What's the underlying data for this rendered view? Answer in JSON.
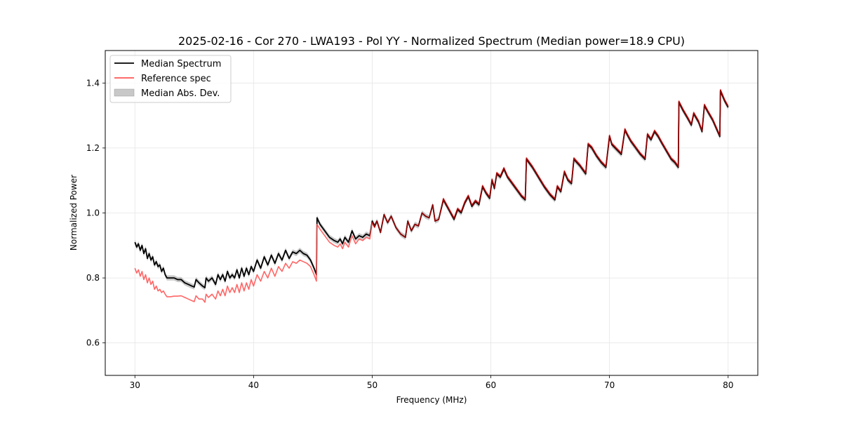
{
  "chart_data": {
    "type": "line",
    "title": "2025-02-16 - Cor 270 - LWA193 - Pol YY - Normalized Spectrum (Median power=18.9 CPU)",
    "xlabel": "Frequency (MHz)",
    "ylabel": "Normalized Power",
    "xlim": [
      27.5,
      82.5
    ],
    "ylim": [
      0.5,
      1.5
    ],
    "xticks": [
      30,
      40,
      50,
      60,
      70,
      80
    ],
    "xtick_labels": [
      "30",
      "40",
      "50",
      "60",
      "70",
      "80"
    ],
    "yticks": [
      0.6,
      0.8,
      1.0,
      1.2,
      1.4
    ],
    "ytick_labels": [
      "0.6",
      "0.8",
      "1.0",
      "1.2",
      "1.4"
    ],
    "grid": true,
    "legend_position": "top-left",
    "legend": [
      {
        "label": "Median Spectrum",
        "type": "line",
        "color": "#000000"
      },
      {
        "label": "Reference spec",
        "type": "line",
        "color": "#ff5555"
      },
      {
        "label": "Median Abs. Dev.",
        "type": "band",
        "color": "#b0b0b0"
      }
    ],
    "mad_halfwidth": 0.008,
    "series": [
      {
        "name": "Median Spectrum",
        "color": "#000000",
        "x": [
          30.0,
          30.15,
          30.3,
          30.45,
          30.6,
          30.75,
          30.9,
          31.05,
          31.2,
          31.35,
          31.5,
          31.65,
          31.8,
          31.95,
          32.1,
          32.25,
          32.4,
          32.55,
          32.7,
          33.0,
          33.3,
          33.6,
          33.9,
          34.2,
          34.5,
          34.8,
          35.0,
          35.15,
          35.4,
          35.7,
          35.9,
          36.0,
          36.2,
          36.5,
          36.8,
          37.0,
          37.2,
          37.4,
          37.6,
          37.8,
          38.0,
          38.2,
          38.4,
          38.6,
          38.8,
          39.0,
          39.2,
          39.4,
          39.6,
          39.8,
          40.0,
          40.3,
          40.6,
          40.9,
          41.2,
          41.5,
          41.8,
          42.1,
          42.4,
          42.7,
          43.0,
          43.3,
          43.6,
          43.9,
          44.2,
          44.5,
          44.8,
          45.1,
          45.3,
          45.35,
          45.6,
          46.0,
          46.4,
          46.8,
          47.1,
          47.3,
          47.5,
          47.7,
          48.0,
          48.3,
          48.6,
          48.9,
          49.2,
          49.5,
          49.8,
          50.0,
          50.2,
          50.4,
          50.7,
          51.0,
          51.3,
          51.6,
          52.0,
          52.4,
          52.8,
          53.0,
          53.3,
          53.6,
          53.9,
          54.2,
          54.5,
          54.8,
          55.1,
          55.3,
          55.6,
          56.0,
          56.3,
          56.6,
          56.9,
          57.2,
          57.5,
          57.8,
          58.1,
          58.4,
          58.7,
          59.0,
          59.3,
          59.6,
          59.9,
          60.1,
          60.3,
          60.5,
          60.8,
          61.1,
          61.4,
          61.7,
          62.0,
          62.3,
          62.6,
          62.9,
          63.0,
          63.5,
          64.0,
          64.5,
          65.0,
          65.4,
          65.6,
          65.9,
          66.2,
          66.5,
          66.8,
          67.0,
          67.5,
          68.0,
          68.2,
          68.5,
          68.9,
          69.3,
          69.7,
          70.0,
          70.2,
          70.6,
          71.0,
          71.3,
          71.5,
          71.8,
          72.2,
          72.6,
          73.0,
          73.2,
          73.5,
          73.8,
          74.1,
          74.4,
          74.8,
          75.2,
          75.5,
          75.8,
          75.85,
          76.2,
          76.6,
          76.9,
          77.1,
          77.5,
          77.8,
          78.0,
          78.3,
          78.7,
          79.0,
          79.3,
          79.35,
          79.7,
          80.0
        ],
        "y": [
          0.91,
          0.895,
          0.905,
          0.885,
          0.9,
          0.875,
          0.89,
          0.86,
          0.875,
          0.855,
          0.865,
          0.84,
          0.85,
          0.835,
          0.84,
          0.82,
          0.83,
          0.81,
          0.8,
          0.8,
          0.8,
          0.795,
          0.795,
          0.785,
          0.78,
          0.775,
          0.772,
          0.795,
          0.785,
          0.775,
          0.77,
          0.8,
          0.79,
          0.8,
          0.78,
          0.81,
          0.795,
          0.81,
          0.79,
          0.82,
          0.8,
          0.81,
          0.8,
          0.825,
          0.8,
          0.83,
          0.805,
          0.83,
          0.81,
          0.835,
          0.82,
          0.855,
          0.83,
          0.865,
          0.84,
          0.87,
          0.845,
          0.875,
          0.855,
          0.885,
          0.86,
          0.88,
          0.875,
          0.885,
          0.875,
          0.87,
          0.855,
          0.83,
          0.81,
          0.985,
          0.965,
          0.945,
          0.925,
          0.915,
          0.91,
          0.92,
          0.905,
          0.925,
          0.91,
          0.945,
          0.92,
          0.93,
          0.925,
          0.935,
          0.93,
          0.975,
          0.96,
          0.975,
          0.94,
          0.995,
          0.97,
          0.99,
          0.955,
          0.935,
          0.925,
          0.975,
          0.945,
          0.965,
          0.96,
          1.0,
          0.99,
          0.985,
          1.025,
          0.975,
          0.98,
          1.04,
          1.02,
          1.0,
          0.98,
          1.01,
          1.0,
          1.03,
          1.05,
          1.02,
          1.035,
          1.025,
          1.08,
          1.06,
          1.045,
          1.1,
          1.075,
          1.12,
          1.11,
          1.135,
          1.11,
          1.095,
          1.08,
          1.065,
          1.05,
          1.04,
          1.165,
          1.14,
          1.11,
          1.08,
          1.055,
          1.04,
          1.08,
          1.065,
          1.125,
          1.1,
          1.09,
          1.165,
          1.145,
          1.12,
          1.21,
          1.2,
          1.175,
          1.155,
          1.14,
          1.235,
          1.21,
          1.195,
          1.18,
          1.255,
          1.24,
          1.22,
          1.2,
          1.18,
          1.165,
          1.24,
          1.225,
          1.25,
          1.235,
          1.215,
          1.19,
          1.165,
          1.155,
          1.14,
          1.34,
          1.315,
          1.29,
          1.27,
          1.305,
          1.28,
          1.25,
          1.33,
          1.31,
          1.285,
          1.26,
          1.235,
          1.375,
          1.345,
          1.325
        ]
      },
      {
        "name": "Reference spec",
        "color": "#ff5555",
        "x": [
          30.0,
          30.15,
          30.3,
          30.45,
          30.6,
          30.75,
          30.9,
          31.05,
          31.2,
          31.35,
          31.5,
          31.65,
          31.8,
          31.95,
          32.1,
          32.25,
          32.4,
          32.55,
          32.7,
          33.0,
          33.3,
          33.6,
          33.9,
          34.2,
          34.5,
          34.8,
          35.0,
          35.15,
          35.4,
          35.7,
          35.9,
          36.0,
          36.2,
          36.5,
          36.8,
          37.0,
          37.2,
          37.4,
          37.6,
          37.8,
          38.0,
          38.2,
          38.4,
          38.6,
          38.8,
          39.0,
          39.2,
          39.4,
          39.6,
          39.8,
          40.0,
          40.3,
          40.6,
          40.9,
          41.2,
          41.5,
          41.8,
          42.1,
          42.4,
          42.7,
          43.0,
          43.3,
          43.6,
          43.9,
          44.2,
          44.5,
          44.8,
          45.1,
          45.3,
          45.35,
          45.6,
          46.0,
          46.4,
          46.8,
          47.1,
          47.3,
          47.5,
          47.7,
          48.0,
          48.3,
          48.6,
          48.9,
          49.2,
          49.5,
          49.8,
          50.0,
          50.2,
          50.4,
          50.7,
          51.0,
          51.3,
          51.6,
          52.0,
          52.4,
          52.8,
          53.0,
          53.3,
          53.6,
          53.9,
          54.2,
          54.5,
          54.8,
          55.1,
          55.3,
          55.6,
          56.0,
          56.3,
          56.6,
          56.9,
          57.2,
          57.5,
          57.8,
          58.1,
          58.4,
          58.7,
          59.0,
          59.3,
          59.6,
          59.9,
          60.1,
          60.3,
          60.5,
          60.8,
          61.1,
          61.4,
          61.7,
          62.0,
          62.3,
          62.6,
          62.9,
          63.0,
          63.5,
          64.0,
          64.5,
          65.0,
          65.4,
          65.6,
          65.9,
          66.2,
          66.5,
          66.8,
          67.0,
          67.5,
          68.0,
          68.2,
          68.5,
          68.9,
          69.3,
          69.7,
          70.0,
          70.2,
          70.6,
          71.0,
          71.3,
          71.5,
          71.8,
          72.2,
          72.6,
          73.0,
          73.2,
          73.5,
          73.8,
          74.1,
          74.4,
          74.8,
          75.2,
          75.5,
          75.8,
          75.85,
          76.2,
          76.6,
          76.9,
          77.1,
          77.5,
          77.8,
          78.0,
          78.3,
          78.7,
          79.0,
          79.3,
          79.35,
          79.7,
          80.0
        ],
        "y": [
          0.83,
          0.815,
          0.825,
          0.805,
          0.82,
          0.795,
          0.81,
          0.785,
          0.8,
          0.78,
          0.79,
          0.765,
          0.775,
          0.76,
          0.765,
          0.755,
          0.76,
          0.75,
          0.742,
          0.742,
          0.744,
          0.744,
          0.745,
          0.74,
          0.735,
          0.73,
          0.727,
          0.745,
          0.735,
          0.735,
          0.725,
          0.75,
          0.74,
          0.75,
          0.735,
          0.76,
          0.745,
          0.765,
          0.745,
          0.775,
          0.755,
          0.77,
          0.755,
          0.78,
          0.755,
          0.785,
          0.76,
          0.785,
          0.765,
          0.795,
          0.775,
          0.81,
          0.79,
          0.82,
          0.8,
          0.83,
          0.805,
          0.835,
          0.82,
          0.845,
          0.83,
          0.85,
          0.845,
          0.855,
          0.85,
          0.845,
          0.835,
          0.81,
          0.79,
          0.965,
          0.95,
          0.93,
          0.91,
          0.9,
          0.895,
          0.905,
          0.89,
          0.91,
          0.895,
          0.93,
          0.905,
          0.92,
          0.915,
          0.925,
          0.92,
          0.97,
          0.955,
          0.975,
          0.94,
          0.995,
          0.97,
          0.99,
          0.955,
          0.935,
          0.925,
          0.975,
          0.945,
          0.965,
          0.96,
          1.0,
          0.99,
          0.985,
          1.025,
          0.975,
          0.98,
          1.045,
          1.025,
          1.005,
          0.985,
          1.015,
          1.005,
          1.035,
          1.055,
          1.025,
          1.04,
          1.03,
          1.085,
          1.065,
          1.05,
          1.105,
          1.08,
          1.125,
          1.115,
          1.14,
          1.115,
          1.1,
          1.085,
          1.07,
          1.055,
          1.045,
          1.17,
          1.145,
          1.115,
          1.085,
          1.06,
          1.045,
          1.085,
          1.07,
          1.13,
          1.105,
          1.095,
          1.17,
          1.15,
          1.125,
          1.215,
          1.205,
          1.18,
          1.16,
          1.145,
          1.24,
          1.215,
          1.2,
          1.185,
          1.26,
          1.245,
          1.225,
          1.205,
          1.185,
          1.17,
          1.245,
          1.23,
          1.255,
          1.24,
          1.22,
          1.195,
          1.17,
          1.16,
          1.145,
          1.345,
          1.32,
          1.295,
          1.275,
          1.31,
          1.285,
          1.255,
          1.335,
          1.315,
          1.29,
          1.265,
          1.24,
          1.38,
          1.35,
          1.33
        ]
      }
    ]
  }
}
